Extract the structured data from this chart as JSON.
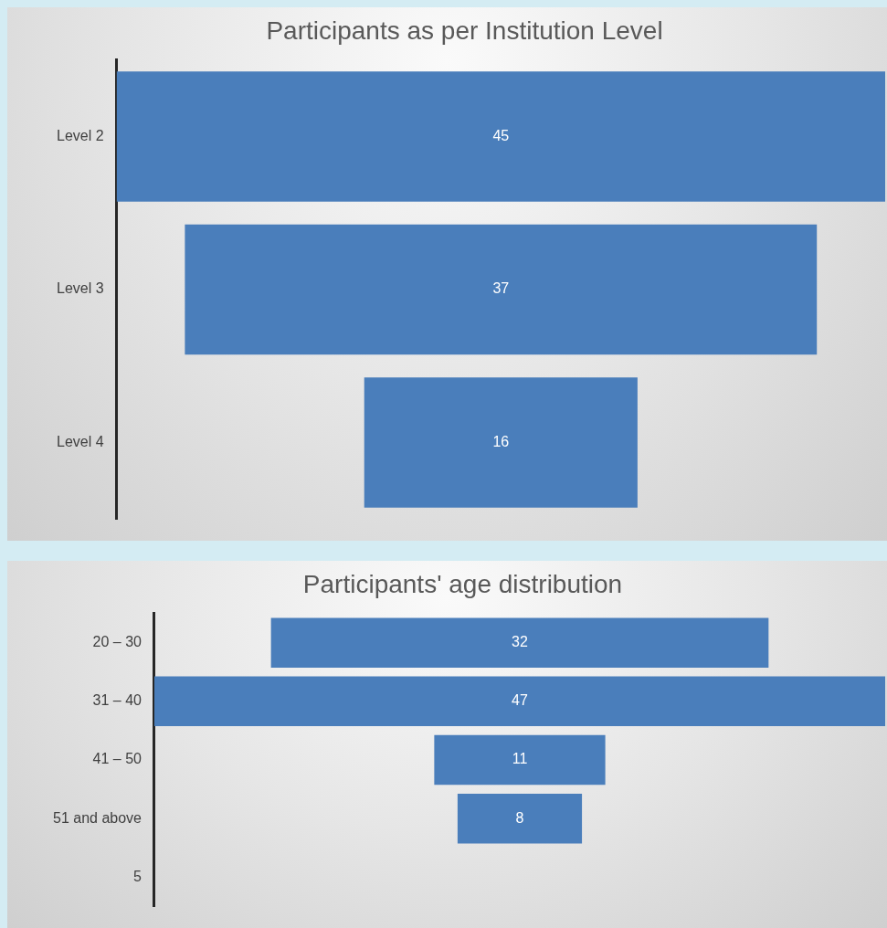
{
  "chart_data": [
    {
      "type": "other",
      "title": "Participants as per Institution Level",
      "categories": [
        "Level 2",
        "Level 3",
        "Level 4"
      ],
      "values": [
        45,
        37,
        16
      ],
      "color": "#4a7ebb",
      "data_labels": true
    },
    {
      "type": "other",
      "title": "Participants' age distribution",
      "categories": [
        "20 – 30",
        "31 – 40",
        "41 – 50",
        "51 and above",
        "5"
      ],
      "values": [
        32,
        47,
        11,
        8,
        null
      ],
      "color": "#4a7ebb",
      "data_labels": true
    }
  ]
}
